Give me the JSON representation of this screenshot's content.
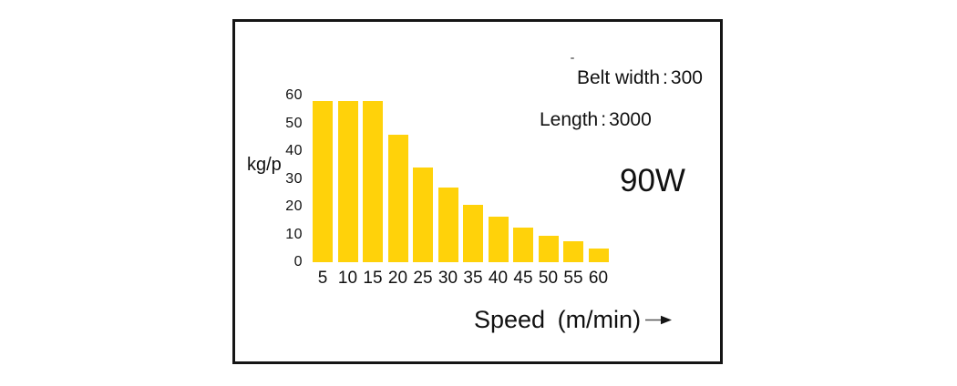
{
  "chart_data": {
    "type": "bar",
    "title": "",
    "categories": [
      "5",
      "10",
      "15",
      "20",
      "25",
      "30",
      "35",
      "40",
      "45",
      "50",
      "55",
      "60"
    ],
    "values": [
      58,
      58,
      58,
      46,
      34,
      27,
      20.5,
      16.5,
      12.5,
      9.5,
      7.5,
      5
    ],
    "xlabel": "Speed (m/min)",
    "ylabel": "kg/p",
    "yticks": [
      0,
      10,
      20,
      30,
      40,
      50,
      60
    ],
    "ylim": [
      0,
      60
    ],
    "grid": false,
    "legend": "none",
    "bar_color": "#ffd20a",
    "frame_border_color": "#151515",
    "text_color": "#111111",
    "annotations": [
      {
        "label": "Belt width",
        "sep": ":",
        "value": "300"
      },
      {
        "label": "Length",
        "sep": ":",
        "value": "3000"
      },
      {
        "text": "90W"
      }
    ],
    "icons": {
      "x_axis_arrow": "right-arrow-icon"
    }
  }
}
